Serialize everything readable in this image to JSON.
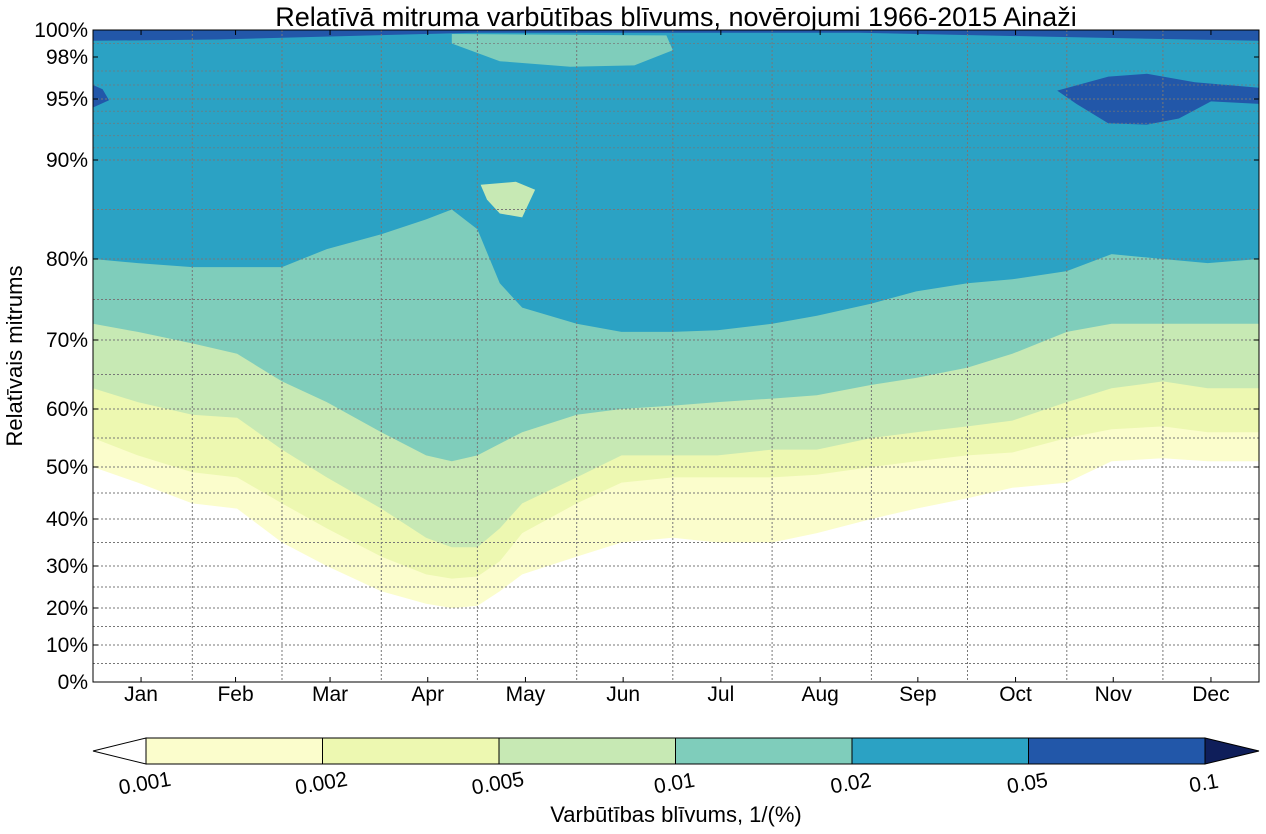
{
  "chart_data": {
    "type": "contourf",
    "title": "Relatīvā mitruma varbūtības blīvums, novērojumi 1966-2015 Ainaži",
    "ylabel": "Relatīvais mitrums",
    "x_categories": [
      "Jan",
      "Feb",
      "Mar",
      "Apr",
      "May",
      "Jun",
      "Jul",
      "Aug",
      "Sep",
      "Oct",
      "Nov",
      "Dec"
    ],
    "x_range_days": [
      1,
      365
    ],
    "y_ticks": [
      "0%",
      "10%",
      "20%",
      "30%",
      "40%",
      "50%",
      "60%",
      "70%",
      "80%",
      "90%",
      "95%",
      "98%",
      "100%"
    ],
    "y_tick_values": [
      0,
      10,
      20,
      30,
      40,
      50,
      60,
      70,
      80,
      90,
      95,
      98,
      100
    ],
    "grid": true,
    "colorbar": {
      "label": "Varbūtības blīvums, 1/(%)",
      "levels": [
        "0.001",
        "0.002",
        "0.005",
        "0.01",
        "0.02",
        "0.05",
        "0.1"
      ],
      "colors": [
        "#ffffff",
        "#fbfdcc",
        "#edf8b1",
        "#c7e9b4",
        "#7fcdbb",
        "#2ba2c4",
        "#2257a9",
        "#0f1e5a"
      ],
      "extend": "both"
    },
    "contour_boundaries": {
      "day": [
        1,
        15,
        32,
        46,
        60,
        74,
        91,
        105,
        113,
        121,
        128,
        135,
        152,
        166,
        182,
        196,
        213,
        227,
        244,
        258,
        274,
        288,
        305,
        319,
        335,
        349,
        365
      ],
      "level_0_001": [
        50,
        47,
        43,
        42,
        35,
        30,
        24,
        21,
        20,
        20.5,
        24,
        28,
        32,
        35,
        36,
        35,
        35,
        37,
        40,
        42,
        44,
        46,
        47,
        51,
        51.5,
        51,
        51
      ],
      "level_0_002": [
        55,
        52,
        49,
        48,
        43,
        38,
        32,
        28,
        27,
        27.5,
        31,
        37,
        43,
        47,
        48,
        48,
        48,
        48.5,
        50,
        51,
        52,
        52.5,
        55,
        56.5,
        57,
        56,
        56
      ],
      "level_0_005": [
        63,
        61,
        59,
        58.5,
        53,
        48,
        42,
        36,
        34,
        34,
        38,
        43,
        48,
        52,
        52,
        52,
        53,
        53,
        55,
        56,
        57,
        58,
        61,
        63,
        64,
        63,
        63
      ],
      "level_0_01": [
        72,
        71,
        69.5,
        68,
        64,
        61,
        56,
        52,
        51,
        52,
        54,
        56,
        59,
        60,
        60.5,
        61,
        61.5,
        62,
        63.5,
        64.5,
        66,
        68,
        71,
        72,
        72,
        72,
        72
      ],
      "level_0_02": [
        80,
        79.5,
        79,
        79,
        79,
        81,
        82.5,
        84,
        85,
        83,
        77,
        74,
        72,
        71,
        71,
        71.2,
        72,
        73,
        74.5,
        76,
        77,
        77.5,
        78.5,
        80.5,
        80,
        79.5,
        80
      ]
    },
    "regions": [
      "dark blue (0.05-0.1) near 95-97% Nov-Dec",
      "teal (0.01-0.02) band near 97-99% Apr-Jul",
      "dark blue (0.05-0.1) thin band near 99-100%"
    ]
  }
}
